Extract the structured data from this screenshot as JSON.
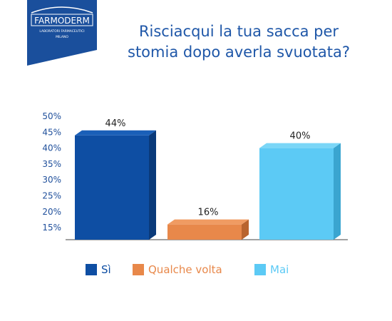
{
  "logo": {
    "brand": "FARMODERM",
    "line1": "LABORATORI FARMACEUTICI",
    "line2": "MILANO",
    "color": "#1a4f9c"
  },
  "title": {
    "line1": "Risciacqui la tua sacca per",
    "line2": "stomia dopo averla svuotata?",
    "color": "#1f57a8"
  },
  "chart_data": {
    "type": "bar",
    "categories": [
      "Sì",
      "Qualche volta",
      "Mai"
    ],
    "values": [
      44,
      16,
      40
    ],
    "data_labels": [
      "44%",
      "16%",
      "40%"
    ],
    "y_ticks": [
      "50%",
      "45%",
      "40%",
      "35%",
      "30%",
      "25%",
      "20%",
      "15%"
    ],
    "ylim": [
      11,
      50
    ],
    "grid": false,
    "legend_position": "bottom",
    "colors": [
      "#0e4ea3",
      "#e8884a",
      "#5ccaf5"
    ],
    "side_colors": [
      "#0a3a7a",
      "#b9642e",
      "#3aa5d0"
    ],
    "top_colors": [
      "#1a5fb8",
      "#f09b62",
      "#7bd6f7"
    ]
  },
  "legend": {
    "items": [
      "Sì",
      "Qualche volta",
      "Mai"
    ],
    "text_colors": [
      "#0e4ea3",
      "#e8884a",
      "#5ccaf5"
    ]
  }
}
